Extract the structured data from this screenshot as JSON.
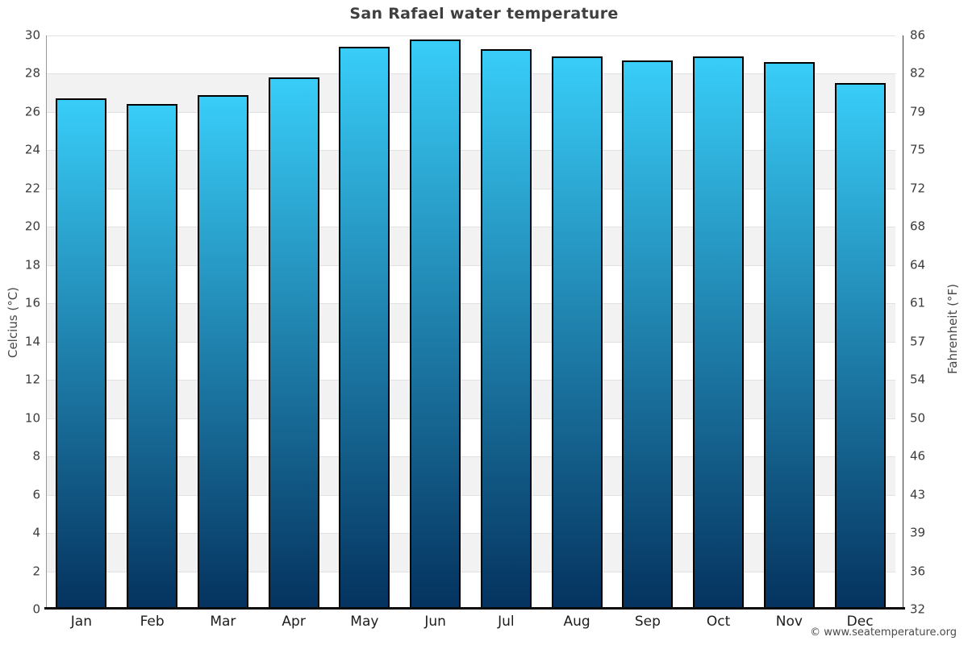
{
  "page": {
    "footer": "© www.seatemperature.org"
  },
  "chart_data": {
    "type": "bar",
    "title": "San Rafael water temperature",
    "categories": [
      "Jan",
      "Feb",
      "Mar",
      "Apr",
      "May",
      "Jun",
      "Jul",
      "Aug",
      "Sep",
      "Oct",
      "Nov",
      "Dec"
    ],
    "values": [
      26.7,
      26.4,
      26.9,
      27.8,
      29.4,
      29.8,
      29.3,
      28.9,
      28.7,
      28.9,
      28.6,
      27.5
    ],
    "value_unit": "°C",
    "ylim": [
      0,
      30
    ],
    "legend": "none",
    "axes": {
      "left": {
        "label": "Celcius (°C)",
        "ticks": [
          "30",
          "28",
          "26",
          "24",
          "22",
          "20",
          "18",
          "16",
          "14",
          "12",
          "10",
          "8",
          "6",
          "4",
          "2",
          "0"
        ]
      },
      "right": {
        "label": "Fahrenheit (°F)",
        "ticks": [
          "86",
          "82",
          "79",
          "75",
          "72",
          "68",
          "64",
          "61",
          "57",
          "54",
          "50",
          "46",
          "43",
          "39",
          "36",
          "32"
        ]
      }
    },
    "grid": {
      "band_interval": 2,
      "band_colors": [
        "#ffffff",
        "#f2f2f2"
      ],
      "line_color": "#e1e1e1"
    },
    "colors": {
      "bar_top": "#38cdf8",
      "bar_bottom": "#05325e",
      "bar_border": "#000000",
      "title_text": "#3f3f3f",
      "tick_text": "#3c3c3c"
    }
  }
}
